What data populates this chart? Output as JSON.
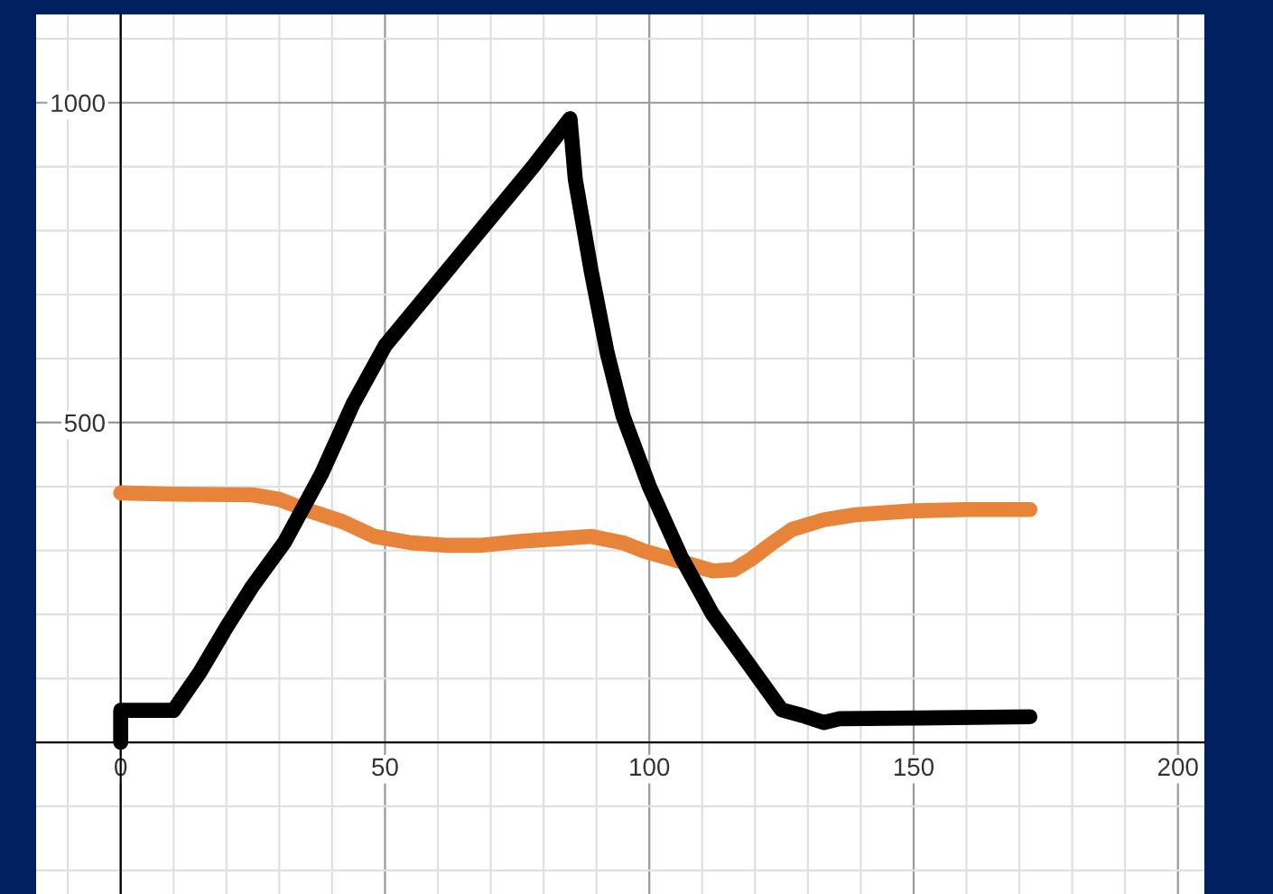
{
  "chart_data": {
    "type": "line",
    "xlim": [
      -16,
      205
    ],
    "ylim": [
      -237,
      1138
    ],
    "xticks": [
      0,
      50,
      100,
      150,
      200
    ],
    "yticks": [
      500,
      1000
    ],
    "grid": true,
    "marker": "none",
    "line_style": "solid",
    "series": [
      {
        "color": "#e8833a",
        "x": [
          0,
          10,
          25,
          30,
          35,
          42,
          48,
          55,
          62,
          68,
          75,
          82,
          89,
          95,
          99,
          105,
          112,
          116,
          119,
          123,
          127,
          133,
          139,
          150,
          160,
          172
        ],
        "values": [
          390,
          388,
          387,
          380,
          364,
          345,
          322,
          312,
          308,
          308,
          314,
          318,
          322,
          312,
          299,
          285,
          268,
          270,
          285,
          310,
          333,
          348,
          356,
          362,
          364,
          364
        ]
      },
      {
        "color": "#000000",
        "x": [
          0,
          0,
          10,
          15,
          20,
          25,
          31,
          38,
          44,
          50,
          57,
          64,
          71,
          78,
          85,
          86,
          89,
          92,
          95,
          100,
          106,
          112,
          119,
          125,
          129,
          133,
          136,
          150,
          172
        ],
        "values": [
          0,
          50,
          50,
          110,
          180,
          245,
          313,
          420,
          530,
          620,
          690,
          760,
          830,
          900,
          975,
          880,
          737,
          610,
          511,
          400,
          290,
          200,
          120,
          51,
          42,
          31,
          37,
          38,
          40
        ]
      }
    ]
  }
}
